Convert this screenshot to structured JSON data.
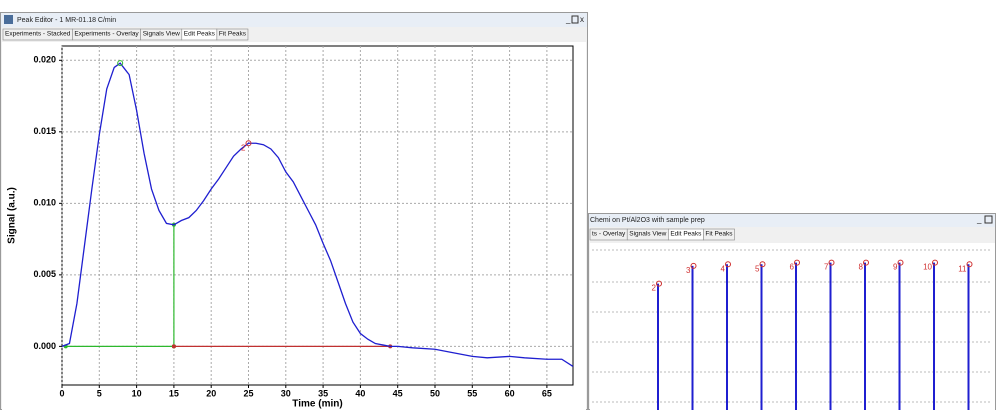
{
  "windows": [
    {
      "title": "Peak Editor - 1 MR-01.18 C/min",
      "tabs": [
        "Experiments - Stacked",
        "Experiments - Overlay",
        "Signals View",
        "Edit Peaks",
        "Fit Peaks"
      ],
      "active_tab": 3
    },
    {
      "title": "Chemi on Pt/Al2O3 with sample prep",
      "tabs": [
        "ts - Overlay",
        "Signals View",
        "Edit Peaks",
        "Fit Peaks"
      ],
      "active_tab": 2
    }
  ],
  "chart_data": [
    {
      "type": "line",
      "xlabel": "Time (min)",
      "ylabel": "Signal (a.u.)",
      "x": [
        0,
        1,
        2,
        3,
        4,
        5,
        6,
        7,
        7.8,
        9,
        10,
        11,
        12,
        13,
        14,
        15,
        16,
        17,
        18,
        19,
        20,
        21,
        22,
        23,
        24,
        25,
        26,
        27,
        28,
        29,
        30,
        31,
        32,
        33,
        34,
        35,
        36,
        37,
        38,
        39,
        40,
        41,
        42,
        43,
        44,
        45,
        47,
        50,
        52,
        55,
        57,
        60,
        62,
        65,
        67,
        68.5
      ],
      "values": [
        0,
        0.0002,
        0.003,
        0.007,
        0.011,
        0.0148,
        0.018,
        0.0195,
        0.0198,
        0.019,
        0.0165,
        0.0135,
        0.011,
        0.0095,
        0.0086,
        0.0085,
        0.0088,
        0.009,
        0.0095,
        0.0102,
        0.011,
        0.0117,
        0.0125,
        0.0133,
        0.0138,
        0.0142,
        0.0142,
        0.0141,
        0.0138,
        0.0132,
        0.0122,
        0.0115,
        0.0105,
        0.0095,
        0.0085,
        0.0072,
        0.006,
        0.0045,
        0.003,
        0.0017,
        0.0009,
        0.0005,
        0.0002,
        0.0001,
        0,
        0,
        -0.0001,
        -0.0002,
        -0.0004,
        -0.0007,
        -0.0008,
        -0.0007,
        -0.0008,
        -0.0009,
        -0.0009,
        -0.0014
      ],
      "color": "#1f1fd0",
      "baselines": [
        {
          "x": [
            0.5,
            15
          ],
          "y": [
            0,
            0
          ],
          "color": "#2db82d"
        },
        {
          "x": [
            15,
            15
          ],
          "y": [
            0,
            0.0085
          ],
          "color": "#2db82d"
        },
        {
          "x": [
            15,
            44
          ],
          "y": [
            0,
            0
          ],
          "color": "#c03030"
        }
      ],
      "peaks": [
        {
          "x": 7.8,
          "y": 0.0198,
          "color": "#2db82d"
        },
        {
          "x": 25,
          "y": 0.0142,
          "label": "2",
          "color": "#d03030"
        }
      ],
      "xlim": [
        0,
        68.5
      ],
      "ylim": [
        -0.0027,
        0.021
      ],
      "xticks": [
        0,
        5,
        10,
        15,
        20,
        25,
        30,
        35,
        40,
        45,
        50,
        55,
        60,
        65
      ],
      "yticks": [
        {
          "value": 0,
          "label": "0.000"
        },
        {
          "value": 0.005,
          "label": "0.005"
        },
        {
          "value": 0.01,
          "label": "0.010"
        },
        {
          "value": 0.015,
          "label": "0.015"
        },
        {
          "value": 0.02,
          "label": "0.020"
        }
      ],
      "grid": true
    },
    {
      "type": "spikes",
      "categories": [
        "2",
        "3",
        "4",
        "5",
        "6",
        "7",
        "8",
        "9",
        "10",
        "11"
      ],
      "values": [
        0.78,
        0.89,
        0.9,
        0.9,
        0.91,
        0.91,
        0.91,
        0.91,
        0.91,
        0.9
      ],
      "ylim": [
        0,
        1
      ],
      "color": "#1f1fd0",
      "marker_color": "#d03030"
    }
  ]
}
